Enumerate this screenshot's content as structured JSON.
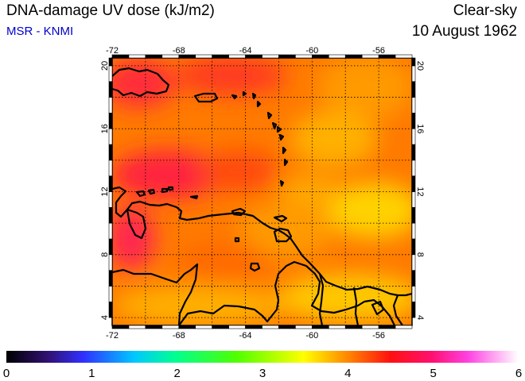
{
  "header": {
    "title": "DNA-damage UV dose (kJ/m2)",
    "source": "MSR - KNMI",
    "condition": "Clear-sky",
    "date": "10 August 1962"
  },
  "map": {
    "lon_range": [
      -72,
      -54
    ],
    "lat_range": [
      3.5,
      20.5
    ],
    "lon_ticks": [
      -72,
      -68,
      -64,
      -60,
      -56
    ],
    "lat_ticks": [
      4,
      8,
      12,
      16,
      20
    ],
    "lon_tick_labels": [
      "-72",
      "-68",
      "-64",
      "-60",
      "-56"
    ],
    "lat_tick_labels": [
      "4",
      "8",
      "12",
      "16",
      "20"
    ],
    "grid": true
  },
  "colorbar": {
    "min": 0,
    "max": 6,
    "tick_labels": [
      "0",
      "1",
      "2",
      "3",
      "4",
      "5",
      "6"
    ]
  }
}
